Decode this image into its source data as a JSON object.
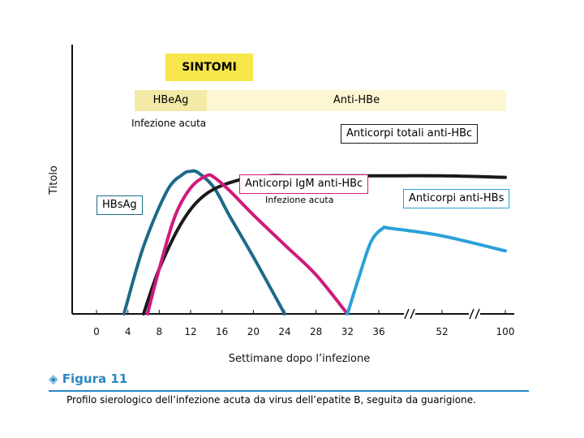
{
  "chart_data": {
    "type": "line",
    "title": "",
    "xlabel": "Settimane dopo l’infezione",
    "ylabel": "Titolo",
    "x_ticks": [
      "0",
      "4",
      "8",
      "12",
      "16",
      "20",
      "24",
      "28",
      "32",
      "36",
      "52",
      "100"
    ],
    "axis_breaks": [
      "between 36 and 52",
      "between 52 and 100"
    ],
    "phases": {
      "symptoms": "SINTOMI",
      "early_marker": "HBeAg",
      "late_marker": "Anti-HBe",
      "acute_phase_note": "Infezione acuta"
    },
    "series": [
      {
        "name": "HBsAg",
        "color": "#1e6a87",
        "points": [
          [
            3.5,
            0
          ],
          [
            6,
            45
          ],
          [
            9,
            82
          ],
          [
            11,
            93
          ],
          [
            12,
            95
          ],
          [
            13,
            94
          ],
          [
            15,
            84
          ],
          [
            17,
            65
          ],
          [
            20,
            38
          ],
          [
            24,
            0
          ]
        ]
      },
      {
        "name": "Anticorpi totali anti-HBc",
        "color": "#1a1a1a",
        "points": [
          [
            6,
            0
          ],
          [
            8,
            30
          ],
          [
            11,
            62
          ],
          [
            14,
            80
          ],
          [
            18,
            89
          ],
          [
            22,
            92
          ],
          [
            24,
            92
          ],
          [
            28,
            92
          ],
          [
            36,
            92
          ],
          [
            52,
            92
          ],
          [
            100,
            91
          ]
        ]
      },
      {
        "name": "Anticorpi IgM anti-HBc",
        "color": "#d11a7b",
        "points": [
          [
            6.5,
            0
          ],
          [
            8,
            30
          ],
          [
            10,
            65
          ],
          [
            12,
            84
          ],
          [
            14,
            92
          ],
          [
            15,
            91
          ],
          [
            17,
            82
          ],
          [
            20,
            66
          ],
          [
            24,
            46
          ],
          [
            28,
            26
          ],
          [
            32,
            0
          ]
        ]
      },
      {
        "name": "Anticorpi anti-HBs",
        "color": "#2aa0d8",
        "points": [
          [
            32,
            0
          ],
          [
            33.5,
            25
          ],
          [
            35,
            48
          ],
          [
            37,
            57
          ],
          [
            39,
            57
          ],
          [
            52,
            52
          ],
          [
            100,
            42
          ]
        ]
      }
    ]
  },
  "figure": {
    "number": "Figura 11",
    "caption": "Profilo sierologico dell’infezione acuta da virus dell’epatite B, seguita da guarigione."
  },
  "colors": {
    "sintomi_bg": "#f7e64b",
    "hbeag_band": "#f3eaa8",
    "antihbe_band": "#fcf7d2",
    "figure_accent": "#2a88c4"
  }
}
